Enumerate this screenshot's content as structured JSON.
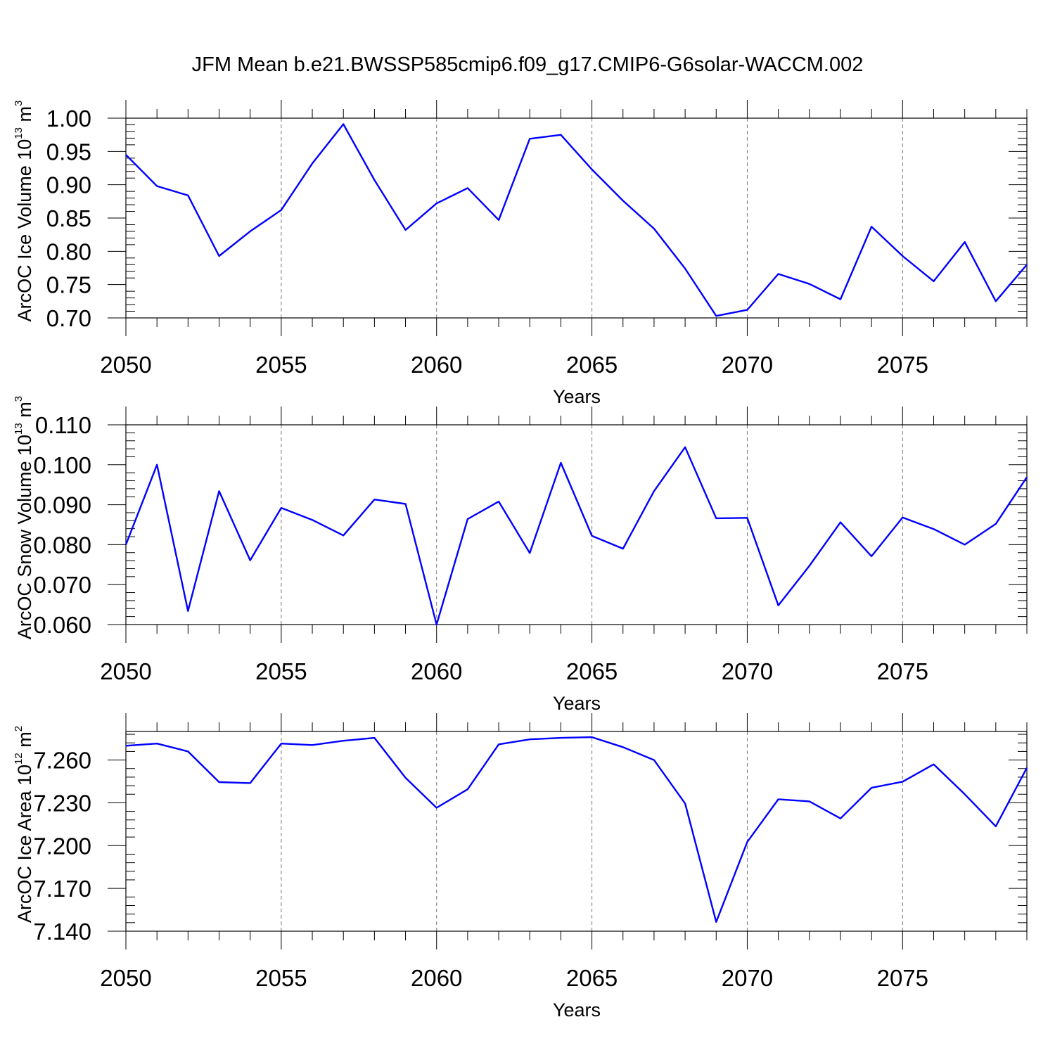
{
  "title": "JFM Mean b.e21.BWSSP585cmip6.f09_g17.CMIP6-G6solar-WACCM.002",
  "chart_data": [
    {
      "type": "line",
      "ylabel_main": "ArcOC Ice Volume 10",
      "ylabel_exp": "13",
      "ylabel_unit": " m",
      "ylabel_unit_exp": "3",
      "xlabel": "Years",
      "xlim": [
        2050,
        2079
      ],
      "ylim": [
        0.7,
        1.0
      ],
      "x_ticks": [
        2050,
        2055,
        2060,
        2065,
        2070,
        2075
      ],
      "y_ticks": [
        "0.70",
        "0.75",
        "0.80",
        "0.85",
        "0.90",
        "0.95",
        "1.00"
      ],
      "y_tick_values": [
        0.7,
        0.75,
        0.8,
        0.85,
        0.9,
        0.95,
        1.0
      ],
      "x": [
        2050,
        2051,
        2052,
        2053,
        2054,
        2055,
        2056,
        2057,
        2058,
        2059,
        2060,
        2061,
        2062,
        2063,
        2064,
        2065,
        2066,
        2067,
        2068,
        2069,
        2070,
        2071,
        2072,
        2073,
        2074,
        2075,
        2076,
        2077,
        2078,
        2079
      ],
      "values": [
        0.945,
        0.898,
        0.884,
        0.793,
        0.83,
        0.862,
        0.932,
        0.991,
        0.907,
        0.832,
        0.872,
        0.895,
        0.847,
        0.969,
        0.975,
        0.923,
        0.876,
        0.834,
        0.774,
        0.703,
        0.712,
        0.766,
        0.751,
        0.728,
        0.837,
        0.793,
        0.755,
        0.814,
        0.725,
        0.78
      ],
      "color": "#0000ff",
      "grid": "vertical dashed at major x ticks"
    },
    {
      "type": "line",
      "ylabel_main": "ArcOC Snow Volume 10",
      "ylabel_exp": "13",
      "ylabel_unit": " m",
      "ylabel_unit_exp": "3",
      "xlabel": "Years",
      "xlim": [
        2050,
        2079
      ],
      "ylim": [
        0.06,
        0.11
      ],
      "x_ticks": [
        2050,
        2055,
        2060,
        2065,
        2070,
        2075
      ],
      "y_ticks": [
        "0.060",
        "0.070",
        "0.080",
        "0.090",
        "0.100",
        "0.110"
      ],
      "y_tick_values": [
        0.06,
        0.07,
        0.08,
        0.09,
        0.1,
        0.11
      ],
      "x": [
        2050,
        2051,
        2052,
        2053,
        2054,
        2055,
        2056,
        2057,
        2058,
        2059,
        2060,
        2061,
        2062,
        2063,
        2064,
        2065,
        2066,
        2067,
        2068,
        2069,
        2070,
        2071,
        2072,
        2073,
        2074,
        2075,
        2076,
        2077,
        2078,
        2079
      ],
      "values": [
        0.08,
        0.1,
        0.0634,
        0.0934,
        0.0761,
        0.0892,
        0.0862,
        0.0823,
        0.0913,
        0.0902,
        0.06,
        0.0864,
        0.0908,
        0.0779,
        0.1005,
        0.0822,
        0.079,
        0.0934,
        0.1044,
        0.0866,
        0.0867,
        0.0648,
        0.0747,
        0.0856,
        0.0771,
        0.0868,
        0.0839,
        0.08,
        0.0852,
        0.0969
      ],
      "color": "#0000ff",
      "grid": "vertical dashed at major x ticks"
    },
    {
      "type": "line",
      "ylabel_main": "ArcOC Ice Area 10",
      "ylabel_exp": "12",
      "ylabel_unit": " m",
      "ylabel_unit_exp": "2",
      "xlabel": "Years",
      "xlim": [
        2050,
        2079
      ],
      "ylim": [
        7.14,
        7.28
      ],
      "x_ticks": [
        2050,
        2055,
        2060,
        2065,
        2070,
        2075
      ],
      "y_ticks": [
        "7.140",
        "7.170",
        "7.200",
        "7.230",
        "7.260"
      ],
      "y_tick_values": [
        7.14,
        7.17,
        7.2,
        7.23,
        7.26
      ],
      "x": [
        2050,
        2051,
        2052,
        2053,
        2054,
        2055,
        2056,
        2057,
        2058,
        2059,
        2060,
        2061,
        2062,
        2063,
        2064,
        2065,
        2066,
        2067,
        2068,
        2069,
        2070,
        2071,
        2072,
        2073,
        2074,
        2075,
        2076,
        2077,
        2078,
        2079
      ],
      "values": [
        7.27,
        7.2715,
        7.266,
        7.2445,
        7.2438,
        7.2715,
        7.2705,
        7.2735,
        7.2755,
        7.2475,
        7.2265,
        7.2395,
        7.271,
        7.2745,
        7.2755,
        7.276,
        7.269,
        7.26,
        7.2295,
        7.1465,
        7.2025,
        7.2325,
        7.231,
        7.219,
        7.2405,
        7.2448,
        7.257,
        7.236,
        7.2135,
        7.2545
      ],
      "color": "#0000ff",
      "grid": "vertical dashed at major x ticks"
    }
  ]
}
